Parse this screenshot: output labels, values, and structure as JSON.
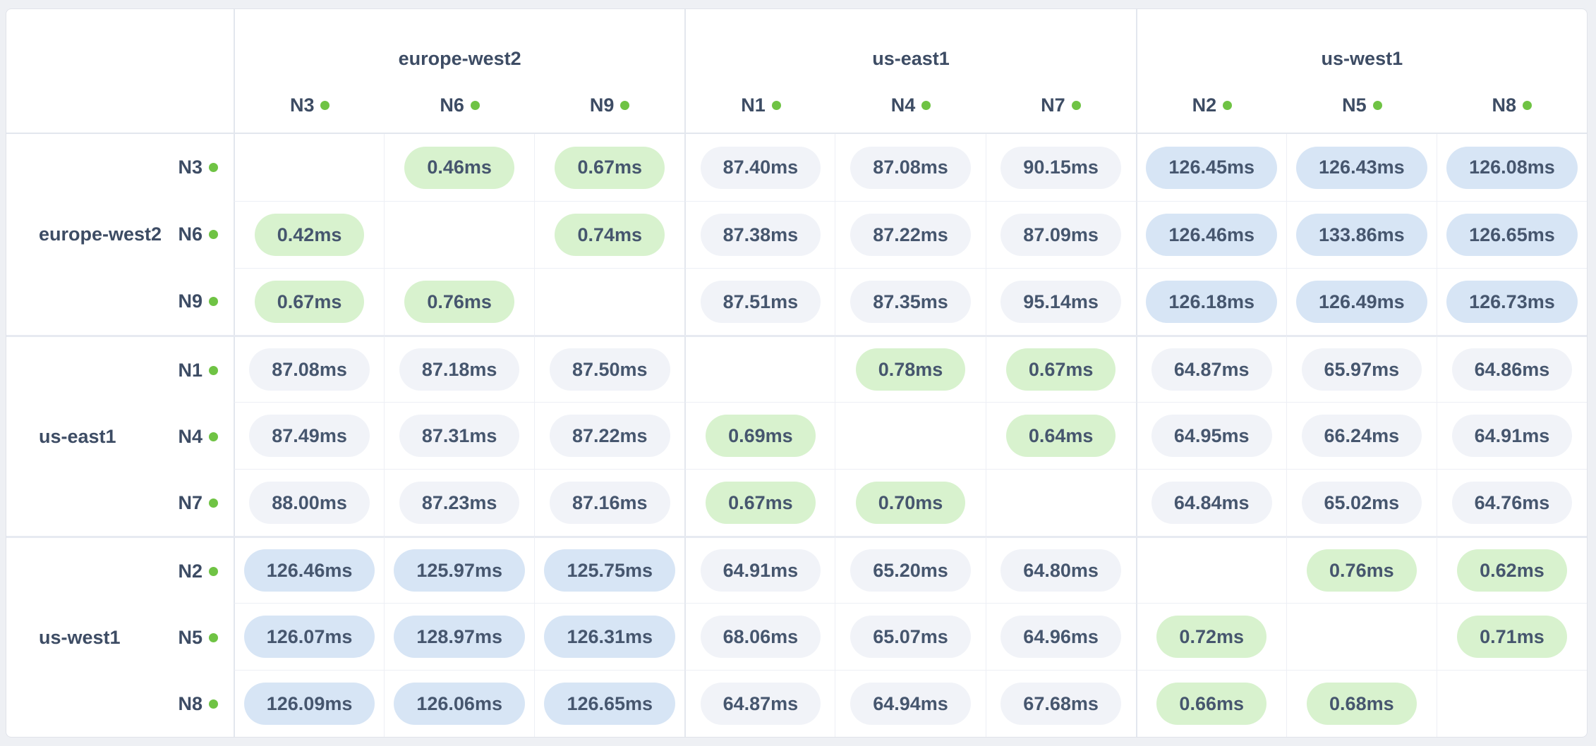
{
  "columns": {
    "regions": [
      {
        "name": "europe-west2",
        "nodes": [
          "N3",
          "N6",
          "N9"
        ]
      },
      {
        "name": "us-east1",
        "nodes": [
          "N1",
          "N4",
          "N7"
        ]
      },
      {
        "name": "us-west1",
        "nodes": [
          "N2",
          "N5",
          "N8"
        ]
      }
    ]
  },
  "rows": [
    {
      "region": "europe-west2",
      "node": "N3",
      "cells": [
        null,
        {
          "value": "0.46ms",
          "tone": "fast"
        },
        {
          "value": "0.67ms",
          "tone": "fast"
        },
        {
          "value": "87.40ms",
          "tone": "medium"
        },
        {
          "value": "87.08ms",
          "tone": "medium"
        },
        {
          "value": "90.15ms",
          "tone": "medium"
        },
        {
          "value": "126.45ms",
          "tone": "slow"
        },
        {
          "value": "126.43ms",
          "tone": "slow"
        },
        {
          "value": "126.08ms",
          "tone": "slow"
        }
      ]
    },
    {
      "region": "europe-west2",
      "node": "N6",
      "cells": [
        {
          "value": "0.42ms",
          "tone": "fast"
        },
        null,
        {
          "value": "0.74ms",
          "tone": "fast"
        },
        {
          "value": "87.38ms",
          "tone": "medium"
        },
        {
          "value": "87.22ms",
          "tone": "medium"
        },
        {
          "value": "87.09ms",
          "tone": "medium"
        },
        {
          "value": "126.46ms",
          "tone": "slow"
        },
        {
          "value": "133.86ms",
          "tone": "slow"
        },
        {
          "value": "126.65ms",
          "tone": "slow"
        }
      ]
    },
    {
      "region": "europe-west2",
      "node": "N9",
      "cells": [
        {
          "value": "0.67ms",
          "tone": "fast"
        },
        {
          "value": "0.76ms",
          "tone": "fast"
        },
        null,
        {
          "value": "87.51ms",
          "tone": "medium"
        },
        {
          "value": "87.35ms",
          "tone": "medium"
        },
        {
          "value": "95.14ms",
          "tone": "medium"
        },
        {
          "value": "126.18ms",
          "tone": "slow"
        },
        {
          "value": "126.49ms",
          "tone": "slow"
        },
        {
          "value": "126.73ms",
          "tone": "slow"
        }
      ]
    },
    {
      "region": "us-east1",
      "node": "N1",
      "cells": [
        {
          "value": "87.08ms",
          "tone": "medium"
        },
        {
          "value": "87.18ms",
          "tone": "medium"
        },
        {
          "value": "87.50ms",
          "tone": "medium"
        },
        null,
        {
          "value": "0.78ms",
          "tone": "fast"
        },
        {
          "value": "0.67ms",
          "tone": "fast"
        },
        {
          "value": "64.87ms",
          "tone": "medium"
        },
        {
          "value": "65.97ms",
          "tone": "medium"
        },
        {
          "value": "64.86ms",
          "tone": "medium"
        }
      ]
    },
    {
      "region": "us-east1",
      "node": "N4",
      "cells": [
        {
          "value": "87.49ms",
          "tone": "medium"
        },
        {
          "value": "87.31ms",
          "tone": "medium"
        },
        {
          "value": "87.22ms",
          "tone": "medium"
        },
        {
          "value": "0.69ms",
          "tone": "fast"
        },
        null,
        {
          "value": "0.64ms",
          "tone": "fast"
        },
        {
          "value": "64.95ms",
          "tone": "medium"
        },
        {
          "value": "66.24ms",
          "tone": "medium"
        },
        {
          "value": "64.91ms",
          "tone": "medium"
        }
      ]
    },
    {
      "region": "us-east1",
      "node": "N7",
      "cells": [
        {
          "value": "88.00ms",
          "tone": "medium"
        },
        {
          "value": "87.23ms",
          "tone": "medium"
        },
        {
          "value": "87.16ms",
          "tone": "medium"
        },
        {
          "value": "0.67ms",
          "tone": "fast"
        },
        {
          "value": "0.70ms",
          "tone": "fast"
        },
        null,
        {
          "value": "64.84ms",
          "tone": "medium"
        },
        {
          "value": "65.02ms",
          "tone": "medium"
        },
        {
          "value": "64.76ms",
          "tone": "medium"
        }
      ]
    },
    {
      "region": "us-west1",
      "node": "N2",
      "cells": [
        {
          "value": "126.46ms",
          "tone": "slow"
        },
        {
          "value": "125.97ms",
          "tone": "slow"
        },
        {
          "value": "125.75ms",
          "tone": "slow"
        },
        {
          "value": "64.91ms",
          "tone": "medium"
        },
        {
          "value": "65.20ms",
          "tone": "medium"
        },
        {
          "value": "64.80ms",
          "tone": "medium"
        },
        null,
        {
          "value": "0.76ms",
          "tone": "fast"
        },
        {
          "value": "0.62ms",
          "tone": "fast"
        }
      ]
    },
    {
      "region": "us-west1",
      "node": "N5",
      "cells": [
        {
          "value": "126.07ms",
          "tone": "slow"
        },
        {
          "value": "128.97ms",
          "tone": "slow"
        },
        {
          "value": "126.31ms",
          "tone": "slow"
        },
        {
          "value": "68.06ms",
          "tone": "medium"
        },
        {
          "value": "65.07ms",
          "tone": "medium"
        },
        {
          "value": "64.96ms",
          "tone": "medium"
        },
        {
          "value": "0.72ms",
          "tone": "fast"
        },
        null,
        {
          "value": "0.71ms",
          "tone": "fast"
        }
      ]
    },
    {
      "region": "us-west1",
      "node": "N8",
      "cells": [
        {
          "value": "126.09ms",
          "tone": "slow"
        },
        {
          "value": "126.06ms",
          "tone": "slow"
        },
        {
          "value": "126.65ms",
          "tone": "slow"
        },
        {
          "value": "64.87ms",
          "tone": "medium"
        },
        {
          "value": "64.94ms",
          "tone": "medium"
        },
        {
          "value": "67.68ms",
          "tone": "medium"
        },
        {
          "value": "0.66ms",
          "tone": "fast"
        },
        {
          "value": "0.68ms",
          "tone": "fast"
        },
        null
      ]
    }
  ],
  "colors": {
    "fast_pill_bg": "#d8f2ce",
    "medium_pill_bg": "#f1f3f8",
    "slow_pill_bg": "#d7e5f5",
    "node_status_dot": "#6fc344",
    "label_text": "#3d4c64",
    "value_text": "#46566e"
  },
  "units": "ms"
}
